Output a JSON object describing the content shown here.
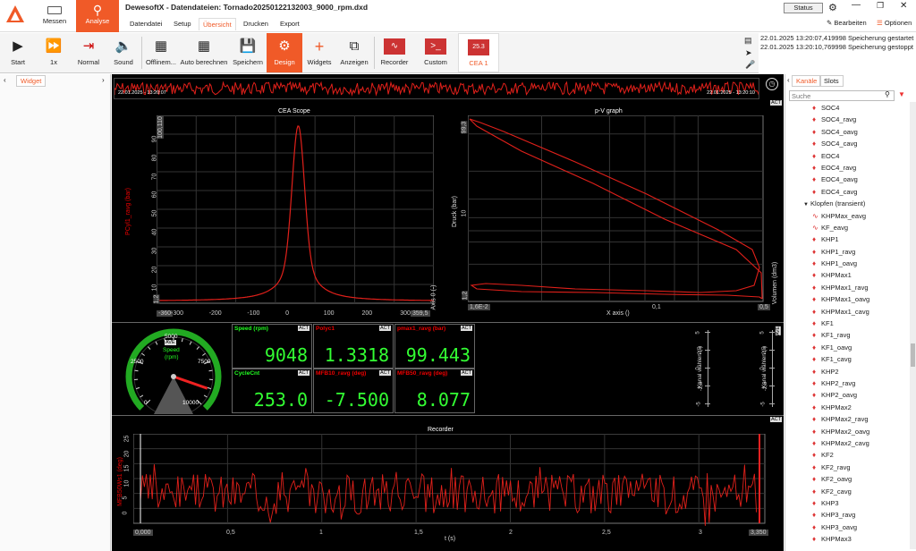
{
  "app": {
    "title": "DewesoftX - Datendateien: Tornado20250122132003_9000_rpm.dxd",
    "status_label": "Status",
    "edit_label": "Bearbeiten",
    "options_label": "Optionen"
  },
  "main_tabs": [
    {
      "label": "Messen"
    },
    {
      "label": "Analyse"
    }
  ],
  "sub_tabs": [
    {
      "label": "Datendatei"
    },
    {
      "label": "Setup"
    },
    {
      "label": "Übersicht"
    },
    {
      "label": "Drucken"
    },
    {
      "label": "Export"
    }
  ],
  "toolbar": {
    "start": "Start",
    "speed": "1x",
    "normal": "Normal",
    "sound": "Sound",
    "offline": "Offlinem...",
    "auto": "Auto berechnen",
    "save": "Speichern",
    "design": "Design",
    "widgets": "Widgets",
    "display": "Anzeigen",
    "recorder": "Recorder",
    "custom": "Custom",
    "cea": "CEA 1"
  },
  "log": [
    "22.01.2025 13:20:07,419998 Speicherung gestartet",
    "22.01.2025 13:20:10,769998 Speicherung gestoppt"
  ],
  "left_panel": {
    "tab": "Widget"
  },
  "overview": {
    "start": "22.01.2025 - 13:20:07",
    "end": "22.01.2025 - 13:20:10"
  },
  "scope": {
    "title": "CEA Scope",
    "ylabel": "PCyl1_ravg (bar)",
    "y2label": "Axis 0 (-)",
    "ymax": "100,110",
    "ymin": "1,2",
    "xmin": "-360",
    "xmax": "359,5",
    "act": "ACT"
  },
  "pv": {
    "title": "p-V graph",
    "ylabel": "Druck (bar)",
    "y2label": "Volumen (dm3)",
    "xlabel": "X axis ()",
    "ymax": "99,3",
    "ymid": "10",
    "ymin": "1,2",
    "xmin": "1,6E-2",
    "xmid": "0,1",
    "xmax": "0,5"
  },
  "gauge": {
    "name": "Speed",
    "unit": "(rpm)",
    "ave": "AVE",
    "ticks": [
      "0",
      "2500",
      "5000",
      "7500",
      "10000"
    ]
  },
  "digitals": [
    {
      "name": "Speed (rpm)",
      "value": "9048",
      "green": true
    },
    {
      "name": "Polyc1",
      "value": "1.3318",
      "green": false
    },
    {
      "name": "pmax1_ravg (bar)",
      "value": "99.443",
      "green": false
    },
    {
      "name": "CycleCnt",
      "value": "253.0",
      "green": true
    },
    {
      "name": "MFB10_ravg (deg)",
      "value": "-7.500",
      "green": false
    },
    {
      "name": "MFB50_ravg (deg)",
      "value": "8.077",
      "green": false
    }
  ],
  "vbars": {
    "label": "Kanal wählen (-)",
    "ticks": [
      "5",
      "2,5",
      "0",
      "-2,5",
      "-5"
    ],
    "ave": "AVE"
  },
  "recorder": {
    "title": "Recorder",
    "ylabel": "MFB50Ws1 (deg)",
    "xlabel": "t (s)",
    "yticks": [
      "25",
      "20",
      "15",
      "10",
      "5",
      "0"
    ],
    "xticks": [
      "0,000",
      "0,5",
      "1",
      "1,5",
      "2",
      "2,5",
      "3",
      "3,350"
    ],
    "act": "ACT"
  },
  "right_panel": {
    "tabs": [
      "Kanäle",
      "Slots"
    ],
    "search_placeholder": "Suche",
    "group": "Klopfen (transient)",
    "channels_top": [
      "SOC4",
      "SOC4_ravg",
      "SOC4_oavg",
      "SOC4_cavg",
      "EOC4",
      "EOC4_ravg",
      "EOC4_oavg",
      "EOC4_cavg"
    ],
    "channels_bottom": [
      "KHPMax_eavg",
      "KF_eavg",
      "KHP1",
      "KHP1_ravg",
      "KHP1_oavg",
      "KHPMax1",
      "KHPMax1_ravg",
      "KHPMax1_oavg",
      "KHPMax1_cavg",
      "KF1",
      "KF1_ravg",
      "KF1_oavg",
      "KF1_cavg",
      "KHP2",
      "KHP2_ravg",
      "KHP2_oavg",
      "KHPMax2",
      "KHPMax2_ravg",
      "KHPMax2_oavg",
      "KHPMax2_cavg",
      "KF2",
      "KF2_ravg",
      "KF2_oavg",
      "KF2_cavg",
      "KHP3",
      "KHP3_ravg",
      "KHP3_oavg",
      "KHPMax3"
    ]
  },
  "colors": {
    "accent": "#f05a28",
    "trace": "#e0201a",
    "digit": "#33ff33"
  }
}
